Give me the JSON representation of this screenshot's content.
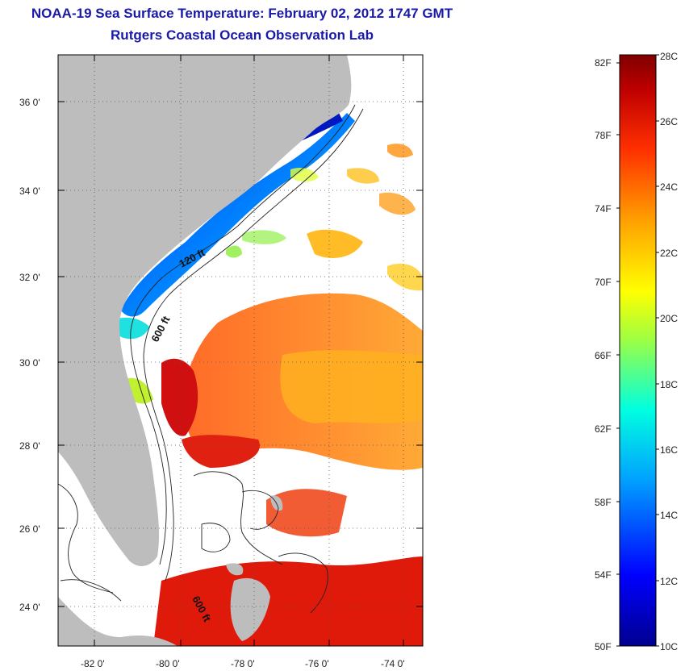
{
  "title": "NOAA-19 Sea Surface Temperature:  February 02, 2012 1747 GMT",
  "subtitle": "Rutgers Coastal Ocean Observation Lab",
  "map": {
    "lat_labels": [
      "36 0'",
      "34 0'",
      "32 0'",
      "30 0'",
      "28 0'",
      "26 0'",
      "24 0'"
    ],
    "lon_labels": [
      "-82 0'",
      "-80 0'",
      "-78 0'",
      "-76 0'",
      "-74 0'"
    ],
    "contour_labels": [
      "120 ft",
      "600 ft",
      "600 ft"
    ],
    "land_color": "#bdbdbd",
    "no_data_color": "#ffffff"
  },
  "colorbar": {
    "fahrenheit_labels": [
      "82F",
      "78F",
      "74F",
      "70F",
      "66F",
      "62F",
      "58F",
      "54F",
      "50F"
    ],
    "celsius_labels": [
      "28C",
      "26C",
      "24C",
      "22C",
      "20C",
      "18C",
      "16C",
      "14C",
      "12C",
      "10C"
    ],
    "range_celsius": [
      10,
      28
    ],
    "colors": [
      "#00008f",
      "#0000ff",
      "#00a0ff",
      "#00ffe0",
      "#a0ff40",
      "#ffff00",
      "#ffa000",
      "#ff3000",
      "#c00000",
      "#800000"
    ]
  }
}
